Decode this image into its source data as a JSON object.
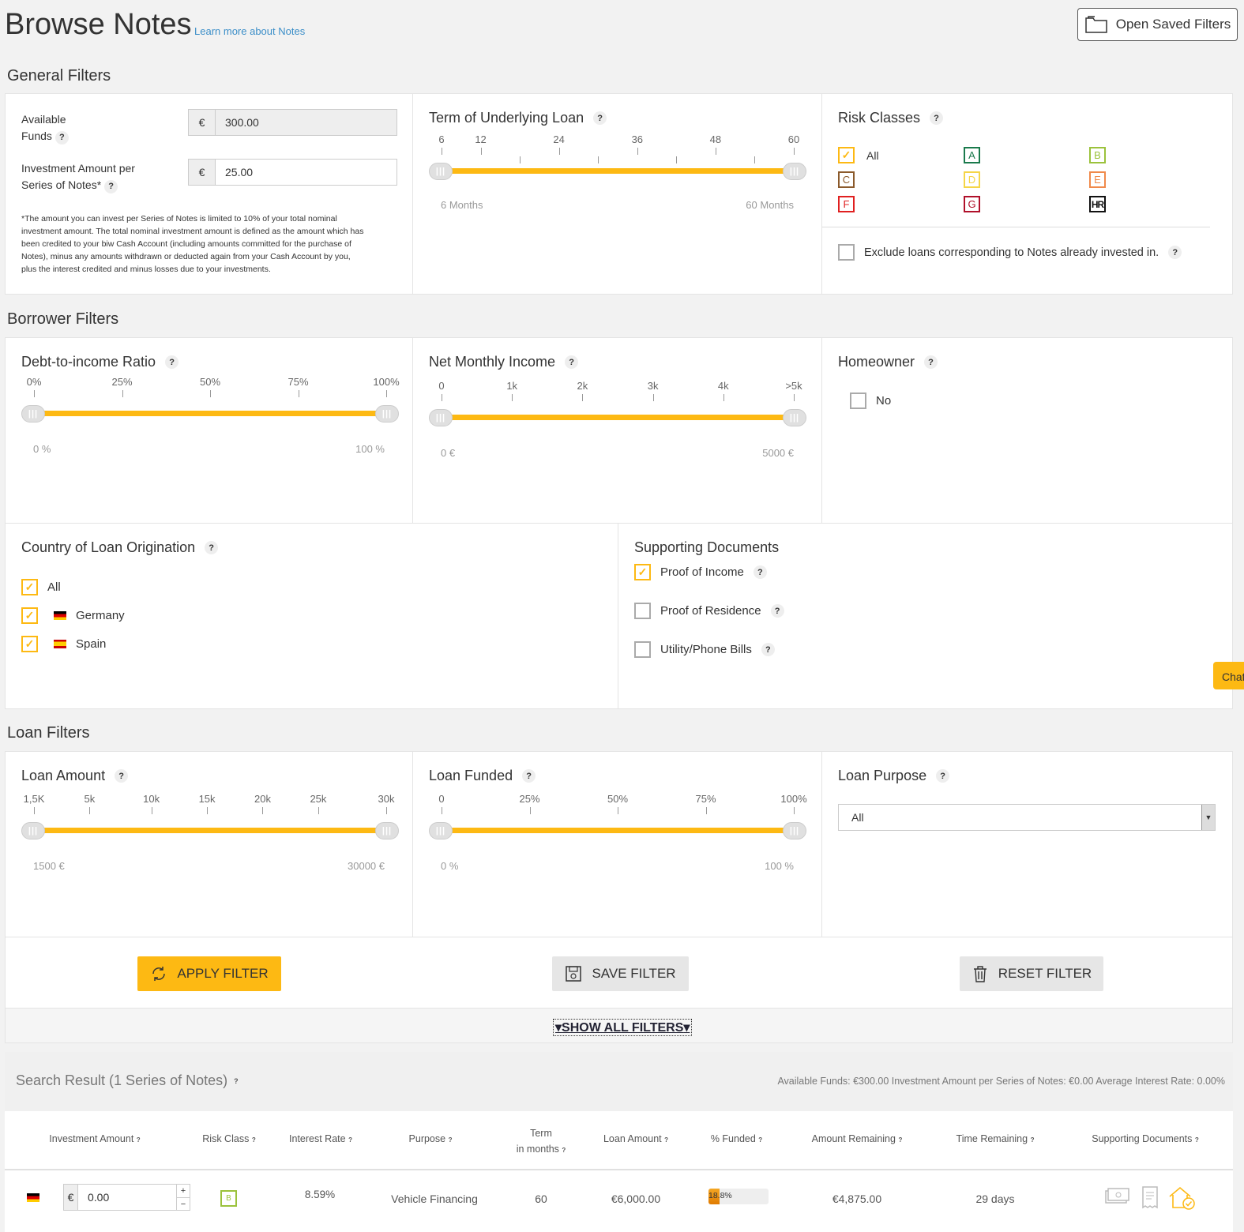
{
  "header": {
    "title": "Browse Notes",
    "learn_more": "Learn more about Notes",
    "open_saved": "Open Saved Filters"
  },
  "general": {
    "section": "General Filters",
    "available_funds": {
      "label1": "Available",
      "label2": "Funds",
      "currency": "€",
      "value": "300.00"
    },
    "investment_amount": {
      "label1": "Investment Amount per",
      "label2": "Series of Notes*",
      "currency": "€",
      "value": "25.00"
    },
    "footnote": [
      "*The amount you can invest per Series of Notes is limited to 10% of your total nominal",
      "investment amount. The total nominal investment amount is defined as the amount which has",
      "been credited to your biw Cash Account (including amounts committed for the purchase of",
      "Notes), minus any amounts withdrawn or deducted again from your Cash Account by you,",
      "plus the interest credited and minus losses due to your investments."
    ],
    "term": {
      "title": "Term of Underlying Loan",
      "ticks": [
        "6",
        "12",
        "24",
        "36",
        "48",
        "60"
      ],
      "min": "6 Months",
      "max": "60 Months"
    },
    "risk": {
      "title": "Risk Classes",
      "all": "All",
      "classes": [
        "A",
        "B",
        "C",
        "D",
        "E",
        "F",
        "G",
        "HR"
      ],
      "colors": {
        "A": "#1a7a4c",
        "B": "#9bc23c",
        "C": "#8b5a2b",
        "D": "#f5d547",
        "E": "#f08a4b",
        "F": "#e02020",
        "G": "#b0102a",
        "HR": "#111111"
      },
      "exclude": "Exclude loans corresponding to Notes already invested in."
    }
  },
  "borrower": {
    "section": "Borrower Filters",
    "dti": {
      "title": "Debt-to-income Ratio",
      "ticks": [
        "0%",
        "25%",
        "50%",
        "75%",
        "100%"
      ],
      "min": "0 %",
      "max": "100 %"
    },
    "income": {
      "title": "Net Monthly Income",
      "ticks": [
        "0",
        "1k",
        "2k",
        "3k",
        "4k",
        ">5k"
      ],
      "min": "0 €",
      "max": "5000 €"
    },
    "homeowner": {
      "title": "Homeowner",
      "option": "No"
    },
    "country": {
      "title": "Country of Loan Origination",
      "options": [
        "All",
        "Germany",
        "Spain"
      ]
    },
    "docs": {
      "title": "Supporting Documents",
      "options": [
        "Proof of Income",
        "Proof of Residence",
        "Utility/Phone Bills"
      ]
    }
  },
  "chat": {
    "label": "Chat"
  },
  "loan": {
    "section": "Loan Filters",
    "amount": {
      "title": "Loan Amount",
      "ticks": [
        "1,5K",
        "5k",
        "10k",
        "15k",
        "20k",
        "25k",
        "30k"
      ],
      "min": "1500 €",
      "max": "30000 €"
    },
    "funded": {
      "title": "Loan Funded",
      "ticks": [
        "0",
        "25%",
        "50%",
        "75%",
        "100%"
      ],
      "min": "0 %",
      "max": "100 %"
    },
    "purpose": {
      "title": "Loan Purpose",
      "value": "All"
    }
  },
  "actions": {
    "apply": "APPLY FILTER",
    "save": "SAVE FILTER",
    "reset": "RESET FILTER",
    "show_all": "SHOW ALL FILTERS"
  },
  "results": {
    "title": "Search Result (1 Series of Notes)",
    "summary": "Available Funds: €300.00 Investment Amount per Series of Notes: €0.00 Average Interest Rate: 0.00%",
    "columns": [
      "Investment Amount",
      "Risk Class",
      "Interest Rate",
      "Purpose",
      "Term",
      "in months",
      "Loan Amount",
      "% Funded",
      "Amount Remaining",
      "Time Remaining",
      "Supporting Documents"
    ],
    "row": {
      "currency": "€",
      "investment": "0.00",
      "risk": "B",
      "rate": "8.59%",
      "purpose": "Vehicle Financing",
      "term": "60",
      "loan_amount": "€6,000.00",
      "funded": "18.8%",
      "funded_pct": 18.8,
      "remaining": "€4,875.00",
      "time": "29 days"
    }
  }
}
